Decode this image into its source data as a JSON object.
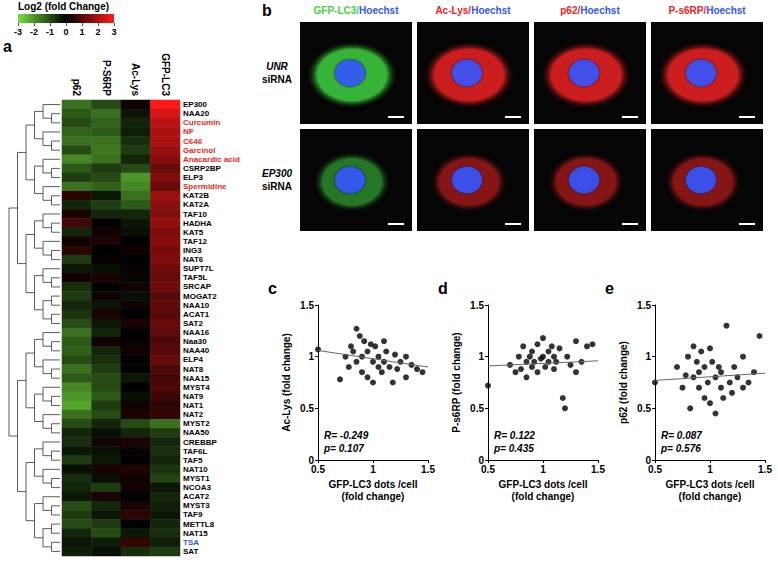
{
  "chart_data": [
    {
      "type": "heatmap",
      "annotations": [
        "a"
      ],
      "columns": [
        "p62",
        "P-S6RP",
        "Ac-Lys",
        "GFP-LC3"
      ],
      "rows": [
        "EP300",
        "NAA20",
        "Curcumin",
        "NF",
        "C646",
        "Garcinol",
        "Anacardic acid",
        "CSRP2BP",
        "ELP3",
        "Spermidine",
        "KAT2B",
        "KAT2A",
        "TAF10",
        "HADHA",
        "KAT5",
        "TAF12",
        "ING3",
        "NAT6",
        "SUPT7L",
        "TAF5L",
        "SRCAP",
        "MOGAT2",
        "NAA10",
        "ACAT1",
        "SAT2",
        "NAA16",
        "Naa30",
        "NAA40",
        "ELP4",
        "NAT8",
        "NAA15",
        "MYST4",
        "NAT9",
        "NAT1",
        "NAT2",
        "MYST2",
        "NAA50",
        "CREBBP",
        "TAF6L",
        "TAF5",
        "NAT10",
        "MYST1",
        "NCOA3",
        "ACAT2",
        "MYST3",
        "TAF9",
        "METTL8",
        "NAT15",
        "TSA",
        "SAT"
      ],
      "row_label_colors": [
        "#000000",
        "#000000",
        "#e8251d",
        "#e8251d",
        "#e8251d",
        "#e8251d",
        "#e8251d",
        "#000000",
        "#000000",
        "#e8251d",
        "#000000",
        "#000000",
        "#000000",
        "#000000",
        "#000000",
        "#000000",
        "#000000",
        "#000000",
        "#000000",
        "#000000",
        "#000000",
        "#000000",
        "#000000",
        "#000000",
        "#000000",
        "#000000",
        "#000000",
        "#000000",
        "#000000",
        "#000000",
        "#000000",
        "#000000",
        "#000000",
        "#000000",
        "#000000",
        "#000000",
        "#000000",
        "#000000",
        "#000000",
        "#000000",
        "#000000",
        "#000000",
        "#000000",
        "#000000",
        "#000000",
        "#000000",
        "#000000",
        "#000000",
        "#3355cc",
        "#000000"
      ],
      "cells": [
        [
          -1.5,
          -1,
          0.2,
          3
        ],
        [
          -1.2,
          -1.5,
          -0.3,
          2.5
        ],
        [
          -1,
          -1.3,
          -0.5,
          2.2
        ],
        [
          -1.3,
          -1.2,
          -0.4,
          2
        ],
        [
          -1.5,
          -1.5,
          -0.6,
          2
        ],
        [
          -1,
          -1.6,
          -0.8,
          1.8
        ],
        [
          -1.8,
          -1.5,
          -0.5,
          1.6
        ],
        [
          -1.2,
          -0.8,
          -1,
          1.2
        ],
        [
          -0.8,
          -1,
          -2,
          1.5
        ],
        [
          -1.5,
          -1.3,
          -1.8,
          1.2
        ],
        [
          0.5,
          -0.3,
          -1.5,
          1.8
        ],
        [
          -0.5,
          -0.8,
          -1.2,
          1.6
        ],
        [
          0.3,
          -0.5,
          -0.5,
          1.5
        ],
        [
          0.8,
          0,
          -0.3,
          1.7
        ],
        [
          -0.5,
          0.2,
          -0.2,
          1.5
        ],
        [
          0.2,
          0.3,
          0,
          1.6
        ],
        [
          0.5,
          0,
          0.2,
          1.4
        ],
        [
          -0.8,
          0.1,
          0,
          1.5
        ],
        [
          -0.3,
          -0.2,
          0.1,
          1.3
        ],
        [
          0.2,
          0.3,
          -0.1,
          1.2
        ],
        [
          -0.6,
          0,
          0.2,
          1.3
        ],
        [
          -0.8,
          0.2,
          -0.2,
          1
        ],
        [
          -0.5,
          -0.3,
          0.2,
          1.1
        ],
        [
          -0.7,
          0.3,
          0,
          1
        ],
        [
          -1,
          -0.3,
          0.3,
          1.2
        ],
        [
          -1.5,
          -0.5,
          0,
          1.1
        ],
        [
          -1.2,
          0.2,
          0.1,
          0.9
        ],
        [
          -1.3,
          -0.5,
          0.2,
          1
        ],
        [
          -1,
          -0.6,
          0,
          1.2
        ],
        [
          -1.5,
          -0.8,
          0,
          0.9
        ],
        [
          -1.2,
          -1,
          -0.3,
          0.8
        ],
        [
          -1.8,
          -1,
          0,
          0.9
        ],
        [
          -2,
          -1.2,
          -0.2,
          0.7
        ],
        [
          -2.2,
          -0.8,
          0.2,
          0.5
        ],
        [
          -1.5,
          -1,
          0.3,
          0.6
        ],
        [
          -1,
          -0.5,
          -1,
          -1.5
        ],
        [
          -0.5,
          -0.2,
          -0.5,
          -0.8
        ],
        [
          -0.6,
          0.2,
          0.3,
          -0.5
        ],
        [
          -0.3,
          -0.2,
          0.1,
          -0.6
        ],
        [
          -0.8,
          -0.3,
          0,
          -0.5
        ],
        [
          -0.2,
          0.3,
          0.4,
          -0.7
        ],
        [
          -0.6,
          -0.2,
          0.2,
          -0.9
        ],
        [
          -0.5,
          -0.8,
          0.2,
          -0.3
        ],
        [
          -0.3,
          0.3,
          0,
          -0.5
        ],
        [
          -1,
          -0.5,
          0.3,
          -0.4
        ],
        [
          -0.8,
          -0.3,
          0.5,
          -0.3
        ],
        [
          -1,
          -0.8,
          0,
          -0.5
        ],
        [
          -0.5,
          -1,
          -0.3,
          -0.6
        ],
        [
          -0.3,
          -0.4,
          0.6,
          -0.4
        ],
        [
          -0.4,
          -0.2,
          -0.6,
          -0.8
        ]
      ],
      "colorbar": {
        "title": "Log2 (fold Change)",
        "range": [
          -3,
          3
        ],
        "ticks": [
          -3,
          -2,
          -1,
          0,
          1,
          2,
          3
        ],
        "colors": [
          "#74e03c",
          "#000000",
          "#ff1a1a"
        ]
      }
    },
    {
      "type": "scatter",
      "annotations": [
        "c",
        "R= -0.249",
        "p= 0.107"
      ],
      "x_label": "GFP-LC3 dots /cell\n(fold change)",
      "y_label": "Ac-Lys (fold change)",
      "x": [
        0.5,
        0.7,
        0.75,
        0.78,
        0.8,
        0.82,
        0.85,
        0.85,
        0.88,
        0.9,
        0.9,
        0.92,
        0.95,
        0.95,
        0.98,
        1.0,
        1.0,
        1.02,
        1.05,
        1.05,
        1.08,
        1.1,
        1.1,
        1.12,
        1.15,
        1.18,
        1.2,
        1.22,
        1.25,
        1.3,
        1.3,
        1.35,
        1.4,
        1.45
      ],
      "values": [
        1.07,
        0.78,
        1.0,
        0.9,
        1.1,
        1.05,
        1.27,
        0.95,
        1.2,
        1.0,
        0.85,
        1.15,
        0.8,
        1.05,
        1.12,
        0.95,
        0.75,
        1.1,
        0.9,
        1.0,
        0.85,
        1.15,
        0.95,
        1.05,
        0.9,
        0.75,
        1.02,
        0.88,
        0.95,
        0.8,
        1.0,
        0.92,
        0.88,
        0.85
      ],
      "fit": {
        "x": [
          0.5,
          1.5
        ],
        "values": [
          1.06,
          0.9
        ]
      },
      "xlim": [
        0.5,
        1.5
      ],
      "xticks": [
        0.5,
        1,
        1.5
      ],
      "ylim": [
        0,
        1.5
      ],
      "yticks": [
        0,
        0.5,
        1,
        1.5
      ],
      "color": "#000000"
    },
    {
      "type": "scatter",
      "annotations": [
        "d",
        "R= 0.122",
        "p= 0.435"
      ],
      "x_label": "GFP-LC3 dots /cell\n(fold change)",
      "y_label": "P-s6RP (fold change)",
      "x": [
        0.5,
        0.7,
        0.75,
        0.78,
        0.8,
        0.82,
        0.85,
        0.85,
        0.88,
        0.9,
        0.9,
        0.92,
        0.95,
        0.95,
        0.98,
        1.0,
        1.0,
        1.02,
        1.05,
        1.05,
        1.08,
        1.1,
        1.1,
        1.12,
        1.15,
        1.18,
        1.2,
        1.22,
        1.25,
        1.3,
        1.3,
        1.35,
        1.4,
        1.45
      ],
      "values": [
        0.72,
        0.92,
        0.85,
        1.0,
        0.88,
        1.1,
        0.95,
        0.8,
        1.0,
        0.9,
        1.05,
        0.95,
        1.12,
        0.85,
        0.98,
        1.0,
        1.18,
        0.9,
        1.05,
        0.95,
        1.1,
        0.88,
        1.0,
        0.95,
        1.08,
        0.6,
        0.5,
        1.0,
        0.92,
        1.15,
        0.85,
        0.95,
        1.1,
        1.12
      ],
      "fit": {
        "x": [
          0.5,
          1.5
        ],
        "values": [
          0.91,
          0.96
        ]
      },
      "xlim": [
        0.5,
        1.5
      ],
      "xticks": [
        0.5,
        1,
        1.5
      ],
      "ylim": [
        0,
        1.5
      ],
      "yticks": [
        0,
        0.5,
        1,
        1.5
      ],
      "color": "#000000"
    },
    {
      "type": "scatter",
      "annotations": [
        "e",
        "R= 0.087",
        "p= 0.576"
      ],
      "x_label": "GFP-LC3 dots /cell\n(fold change)",
      "y_label": "p62 (fold change)",
      "x": [
        0.5,
        0.7,
        0.75,
        0.78,
        0.8,
        0.82,
        0.85,
        0.85,
        0.88,
        0.9,
        0.9,
        0.92,
        0.95,
        0.95,
        0.98,
        1.0,
        1.0,
        1.02,
        1.05,
        1.05,
        1.08,
        1.1,
        1.1,
        1.12,
        1.15,
        1.18,
        1.2,
        1.22,
        1.25,
        1.3,
        1.3,
        1.35,
        1.4,
        1.45
      ],
      "values": [
        0.75,
        0.9,
        0.7,
        0.82,
        1.0,
        0.5,
        0.8,
        1.1,
        0.95,
        0.85,
        0.7,
        1.05,
        0.6,
        0.9,
        0.75,
        0.55,
        1.08,
        0.95,
        0.8,
        0.45,
        0.9,
        0.7,
        0.85,
        0.6,
        1.3,
        0.75,
        0.65,
        0.9,
        0.8,
        1.0,
        0.7,
        0.75,
        0.85,
        1.2
      ],
      "fit": {
        "x": [
          0.5,
          1.5
        ],
        "values": [
          0.77,
          0.84
        ]
      },
      "xlim": [
        0.5,
        1.5
      ],
      "xticks": [
        0.5,
        1,
        1.5
      ],
      "ylim": [
        0,
        1.5
      ],
      "yticks": [
        0,
        0.5,
        1,
        1.5
      ],
      "color": "#000000"
    }
  ],
  "panel_b": {
    "label": "b",
    "columns": [
      {
        "parts": [
          {
            "text": "GFP-LC3/",
            "color": "#3fd23f"
          },
          {
            "text": "Hoechst",
            "color": "#3355ff"
          }
        ]
      },
      {
        "parts": [
          {
            "text": "Ac-Lys/",
            "color": "#ee2222"
          },
          {
            "text": "Hoechst",
            "color": "#3355ff"
          }
        ]
      },
      {
        "parts": [
          {
            "text": "p62/",
            "color": "#ee2222"
          },
          {
            "text": "Hoechst",
            "color": "#3355ff"
          }
        ]
      },
      {
        "parts": [
          {
            "text": "P-s6RP/",
            "color": "#ee2222"
          },
          {
            "text": "Hoechst",
            "color": "#3355ff"
          }
        ]
      }
    ],
    "rows": [
      {
        "parts": [
          {
            "text": "UNR",
            "italic": true
          },
          {
            "text": "siRNA",
            "italic": false
          }
        ]
      },
      {
        "parts": [
          {
            "text": "EP300",
            "italic": true
          },
          {
            "text": "siRNA",
            "italic": false
          }
        ]
      }
    ]
  }
}
